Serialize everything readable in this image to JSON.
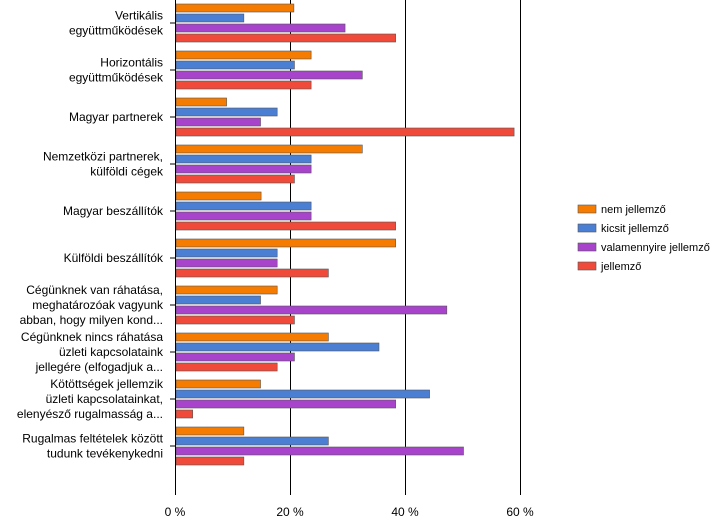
{
  "chart_data": {
    "type": "bar",
    "orientation": "horizontal",
    "title": "",
    "xlabel": "",
    "ylabel": "",
    "xlim": [
      0,
      60
    ],
    "x_ticks": [
      0,
      20,
      40,
      60
    ],
    "x_tick_labels": [
      "0 %",
      "20 %",
      "40 %",
      "60 %"
    ],
    "grid": "vertical major lines",
    "legend_position": "right",
    "categories": [
      [
        "Vertikális",
        "együttműködések"
      ],
      [
        "Horizontális",
        "együttműködések"
      ],
      [
        "Magyar partnerek"
      ],
      [
        "Nemzetközi partnerek,",
        "külföldi cégek"
      ],
      [
        "Magyar beszállítók"
      ],
      [
        "Külföldi beszállítók"
      ],
      [
        "Cégünknek van ráhatása,",
        "meghatározóak vagyunk",
        "abban, hogy milyen kond..."
      ],
      [
        "Cégünknek nincs ráhatása",
        "üzleti kapcsolataink",
        "jellegére (elfogadjuk a..."
      ],
      [
        "Kötöttségek jellemzik",
        "üzleti kapcsolatainkat,",
        "elenyésző rugalmasság a..."
      ],
      [
        "Rugalmas feltételek között",
        "tudunk tevékenykedni"
      ]
    ],
    "series": [
      {
        "name": "nem jellemző",
        "color": "#f57c00",
        "values": [
          20.5,
          23.5,
          8.8,
          32.4,
          14.8,
          38.2,
          17.6,
          26.5,
          14.7,
          11.8
        ]
      },
      {
        "name": "kicsit jellemző",
        "color": "#4a7fd4",
        "values": [
          11.8,
          20.6,
          17.6,
          23.5,
          23.5,
          17.6,
          14.7,
          35.3,
          44.1,
          26.5
        ]
      },
      {
        "name": "valamennyire jellemző",
        "color": "#a844cc",
        "values": [
          29.4,
          32.4,
          14.7,
          23.5,
          23.5,
          17.6,
          47.1,
          20.6,
          38.2,
          50.0
        ]
      },
      {
        "name": "jellemző",
        "color": "#f04a3a",
        "values": [
          38.2,
          23.5,
          58.8,
          20.6,
          38.2,
          26.5,
          20.6,
          17.6,
          2.9,
          11.8
        ]
      }
    ]
  }
}
